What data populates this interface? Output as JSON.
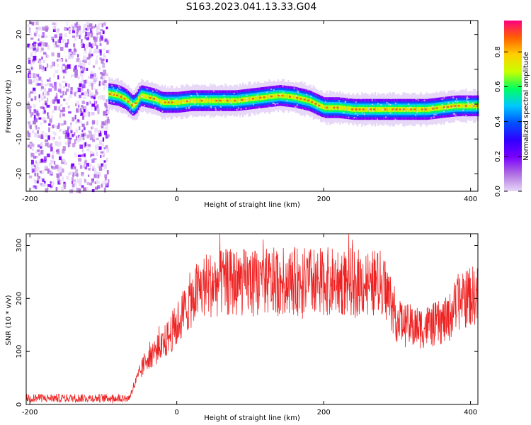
{
  "title": "S163.2023.041.13.33.G04",
  "colors": {
    "snr_line": "#ee2222",
    "colormap": [
      "#ffffff",
      "#e8d8f8",
      "#b070e0",
      "#7a00ff",
      "#3000ff",
      "#0050ff",
      "#00c8ff",
      "#00ff60",
      "#c8ff00",
      "#ffd000",
      "#ff6000",
      "#ff0080"
    ]
  },
  "chart_data": [
    {
      "type": "heatmap",
      "xlabel": "Height of straight line (km)",
      "ylabel": "Frequency (Hz)",
      "xlim": [
        -205,
        410
      ],
      "ylim": [
        -25,
        24
      ],
      "xticks": [
        -200,
        0,
        200,
        400
      ],
      "yticks": [
        -20,
        -10,
        0,
        10,
        20
      ],
      "colorbar": {
        "label": "Normalized spectral amplitude",
        "range": [
          0,
          0.98
        ],
        "ticks": [
          "0.0",
          "0.2",
          "0.4",
          "0.6",
          "0.8"
        ],
        "tick_values": [
          0.0,
          0.2,
          0.4,
          0.6,
          0.8
        ]
      },
      "noise_region_x": [
        -205,
        -93
      ],
      "ridge": {
        "x": [
          -93,
          -80,
          -70,
          -60,
          -55,
          -50,
          -40,
          -30,
          -20,
          0,
          20,
          40,
          60,
          80,
          100,
          120,
          140,
          160,
          170,
          180,
          190,
          200,
          220,
          240,
          260,
          280,
          300,
          320,
          340,
          360,
          380,
          400,
          410
        ],
        "frequency_hz": [
          3,
          2.5,
          1.5,
          -0.5,
          0.5,
          2.5,
          2,
          1.5,
          0.5,
          0.5,
          1,
          1,
          1,
          1,
          1.5,
          2,
          2.5,
          2,
          1.5,
          1,
          0,
          -1,
          -1,
          -1.5,
          -1.5,
          -1.5,
          -1.5,
          -1.5,
          -1.5,
          -1,
          -0.5,
          -0.5,
          -0.5
        ]
      }
    },
    {
      "type": "line",
      "xlabel": "Height of straight line (km)",
      "ylabel": "SNR (10 * v/v)",
      "xlim": [
        -205,
        410
      ],
      "ylim": [
        0,
        322
      ],
      "xticks": [
        -200,
        0,
        200,
        400
      ],
      "yticks": [
        0,
        100,
        200,
        300
      ],
      "series": [
        {
          "x": [
            -205,
            -150,
            -100,
            -65,
            -60,
            -50,
            -40,
            -30,
            -20,
            -10,
            0,
            10,
            20,
            30,
            40,
            60,
            100,
            150,
            200,
            250,
            280,
            290,
            300,
            310,
            330,
            350,
            370,
            380,
            400,
            410
          ],
          "values": [
            12,
            12,
            12,
            12,
            30,
            60,
            90,
            100,
            110,
            130,
            150,
            175,
            200,
            215,
            225,
            230,
            230,
            232,
            232,
            230,
            228,
            200,
            160,
            150,
            145,
            150,
            160,
            190,
            205,
            205
          ]
        }
      ]
    }
  ]
}
